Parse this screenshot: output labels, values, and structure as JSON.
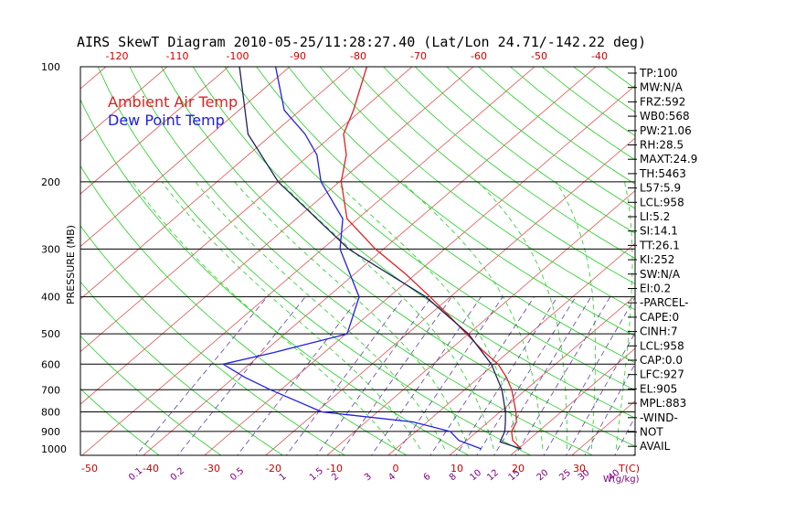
{
  "title": "AIRS SkewT Diagram 2010-05-25/11:28:27.40 (Lat/Lon 24.71/-142.22 deg)",
  "ylabel": "PRESSURE (MB)",
  "legend": [
    {
      "label": "Ambient Air Temp",
      "color": "#e02020"
    },
    {
      "label": "Dew Point Temp",
      "color": "#2020e0"
    }
  ],
  "colors": {
    "temp": "#e02020",
    "dew": "#2020e0",
    "parcel": "#202060",
    "isotherm": "#e05050",
    "dry_adiabat": "#20d020",
    "moist_adiabat": "#20d020",
    "mixing_ratio": "#6040a0",
    "isobar": "#000000"
  },
  "chart_data": {
    "type": "line",
    "title": "AIRS SkewT Diagram 2010-05-25/11:28:27.40 (Lat/Lon 24.71/-142.22 deg)",
    "ylabel": "PRESSURE (MB)",
    "pressure_range": [
      1050,
      100
    ],
    "pressure_ticks": [
      100,
      200,
      300,
      400,
      500,
      600,
      700,
      800,
      900,
      1000
    ],
    "pressure_lines": [
      200,
      300,
      400,
      500,
      600,
      700,
      800,
      900
    ],
    "top_temp_ticks": [
      -120,
      -110,
      -100,
      -90,
      -80,
      -70,
      -60,
      -50,
      -40
    ],
    "bottom_temp_ticks": [
      -50,
      -40,
      -30,
      -20,
      -10,
      0,
      10,
      20,
      30
    ],
    "bottom_temp_unit": "T(C)",
    "mixing_ratio_ticks": [
      "0.1",
      "0.2",
      "0.5",
      "1",
      "1.5",
      "2",
      "3",
      "4",
      "6",
      "8",
      "10",
      "12",
      "15",
      "20",
      "25",
      "30",
      "40"
    ],
    "mixing_ratio_unit": "W(g/kg)",
    "series": [
      {
        "name": "Ambient Air Temp",
        "points": [
          [
            1000,
            20.5
          ],
          [
            950,
            17.5
          ],
          [
            900,
            15.6
          ],
          [
            850,
            14.6
          ],
          [
            800,
            12.6
          ],
          [
            700,
            7.7
          ],
          [
            650,
            4.5
          ],
          [
            600,
            0.6
          ],
          [
            550,
            -4.8
          ],
          [
            500,
            -10.3
          ],
          [
            450,
            -16.4
          ],
          [
            400,
            -23.3
          ],
          [
            350,
            -31.4
          ],
          [
            300,
            -41.3
          ],
          [
            250,
            -51.7
          ],
          [
            200,
            -59.7
          ],
          [
            170,
            -64
          ],
          [
            150,
            -68.4
          ],
          [
            130,
            -71.3
          ],
          [
            100,
            -77.4
          ]
        ]
      },
      {
        "name": "Dew Point Temp",
        "points": [
          [
            1000,
            14
          ],
          [
            950,
            8.7
          ],
          [
            900,
            5.6
          ],
          [
            850,
            -2.3
          ],
          [
            800,
            -19.1
          ],
          [
            700,
            -31.7
          ],
          [
            650,
            -38.2
          ],
          [
            600,
            -44.3
          ],
          [
            560,
            -38.3
          ],
          [
            500,
            -29.8
          ],
          [
            400,
            -34.9
          ],
          [
            300,
            -47.1
          ],
          [
            250,
            -52.4
          ],
          [
            200,
            -63
          ],
          [
            170,
            -68.8
          ],
          [
            150,
            -74.7
          ],
          [
            130,
            -82.6
          ],
          [
            100,
            -92.3
          ]
        ]
      },
      {
        "points": [
          [
            1000,
            20.5
          ],
          [
            958,
            15.7
          ],
          [
            900,
            14.5
          ],
          [
            850,
            12.8
          ],
          [
            800,
            10.9
          ],
          [
            700,
            6.1
          ],
          [
            600,
            -0.5
          ],
          [
            500,
            -10
          ],
          [
            400,
            -24
          ],
          [
            300,
            -45.7
          ],
          [
            200,
            -70
          ],
          [
            150,
            -84
          ],
          [
            100,
            -98.2
          ]
        ]
      }
    ]
  },
  "indices": [
    "TP:100",
    "MW:N/A",
    "FRZ:592",
    "WB0:568",
    "PW:21.06",
    "RH:28.5",
    "MAXT:24.9",
    "TH:5463",
    "L57:5.9",
    "LCL:958",
    "LI:5.2",
    "SI:14.1",
    "TT:26.1",
    "KI:252",
    "SW:N/A",
    "EI:0.2",
    "-PARCEL-",
    "CAPE:0",
    "CINH:7",
    "LCL:958",
    "CAP:0.0",
    "LFC:927",
    "EL:905",
    "MPL:883",
    "-WIND-",
    "NOT",
    "AVAIL"
  ]
}
